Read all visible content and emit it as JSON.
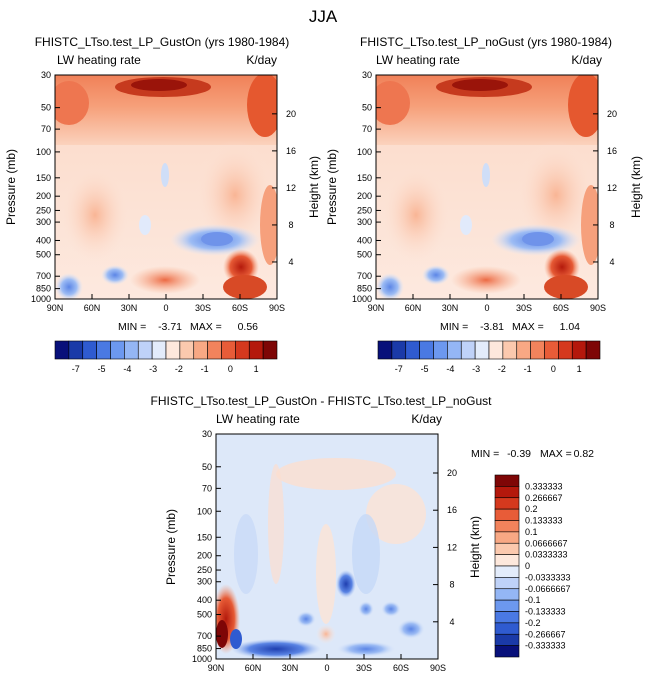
{
  "figure": {
    "title": "JJA"
  },
  "chart_data": [
    {
      "type": "heatmap",
      "id": "gust-on",
      "title": "FHISTC_LTso.test_LP_GustOn (yrs 1980-1984)",
      "variable": "LW heating rate",
      "units": "K/day",
      "ylabel": "Pressure (mb)",
      "ylabel_right": "Height (km)",
      "x_tick_labels": [
        "90N",
        "60N",
        "30N",
        "0",
        "30S",
        "60S",
        "90S"
      ],
      "x_range": [
        90,
        -90
      ],
      "y_tick_labels": [
        "30",
        "50",
        "70",
        "100",
        "150",
        "200",
        "250",
        "300",
        "400",
        "500",
        "700",
        "850",
        "1000"
      ],
      "y_range_mb": [
        30,
        1000
      ],
      "height_tick_labels": [
        "20",
        "16",
        "12",
        "8",
        "4"
      ],
      "stats": {
        "min_label": "MIN =",
        "min": "-3.71",
        "max_label": "MAX =",
        "max": "0.56"
      }
    },
    {
      "type": "heatmap",
      "id": "no-gust",
      "title": "FHISTC_LTso.test_LP_noGust (yrs 1980-1984)",
      "variable": "LW heating rate",
      "units": "K/day",
      "ylabel": "Pressure (mb)",
      "ylabel_right": "Height (km)",
      "x_tick_labels": [
        "90N",
        "60N",
        "30N",
        "0",
        "30S",
        "60S",
        "90S"
      ],
      "x_range": [
        90,
        -90
      ],
      "y_tick_labels": [
        "30",
        "50",
        "70",
        "100",
        "150",
        "200",
        "250",
        "300",
        "400",
        "500",
        "700",
        "850",
        "1000"
      ],
      "y_range_mb": [
        30,
        1000
      ],
      "height_tick_labels": [
        "20",
        "16",
        "12",
        "8",
        "4"
      ],
      "stats": {
        "min_label": "MIN =",
        "min": "-3.81",
        "max_label": "MAX =",
        "max": "1.04"
      }
    },
    {
      "type": "heatmap",
      "id": "difference",
      "title": "FHISTC_LTso.test_LP_GustOn - FHISTC_LTso.test_LP_noGust",
      "variable": "LW heating rate",
      "units": "K/day",
      "ylabel": "Pressure (mb)",
      "ylabel_right": "Height (km)",
      "x_tick_labels": [
        "90N",
        "60N",
        "30N",
        "0",
        "30S",
        "60S",
        "90S"
      ],
      "x_range": [
        90,
        -90
      ],
      "y_tick_labels": [
        "30",
        "50",
        "70",
        "100",
        "150",
        "200",
        "250",
        "300",
        "400",
        "500",
        "700",
        "850",
        "1000"
      ],
      "y_range_mb": [
        30,
        1000
      ],
      "height_tick_labels": [
        "20",
        "16",
        "12",
        "8",
        "4"
      ],
      "stats": {
        "min_label": "MIN =",
        "min": "-0.39",
        "max_label": "MAX =",
        "max": "0.82"
      }
    }
  ],
  "colorbar_main": {
    "labels": [
      "-7",
      "-5",
      "-4",
      "-3",
      "-2",
      "-1",
      "0",
      "1"
    ],
    "colors": [
      "#08107a",
      "#1a3aa8",
      "#2f5bd0",
      "#4a79e3",
      "#6c98ef",
      "#94b6f5",
      "#bfd2f8",
      "#e3ecfb",
      "#fde8dc",
      "#fbc9ae",
      "#f8a884",
      "#f2835c",
      "#e85c38",
      "#d5391e",
      "#b4180c",
      "#7e0606"
    ]
  },
  "colorbar_diff": {
    "labels": [
      "0.333333",
      "0.266667",
      "0.2",
      "0.133333",
      "0.1",
      "0.0666667",
      "0.0333333",
      "0",
      "-0.0333333",
      "-0.0666667",
      "-0.1",
      "-0.133333",
      "-0.2",
      "-0.266667",
      "-0.333333"
    ],
    "colors": [
      "#7e0606",
      "#b4180c",
      "#d5391e",
      "#e85c38",
      "#f2835c",
      "#f8a884",
      "#fbc9ae",
      "#fde8dc",
      "#e3ecfb",
      "#bfd2f8",
      "#94b6f5",
      "#6c98ef",
      "#4a79e3",
      "#2f5bd0",
      "#1a3aa8",
      "#08107a"
    ]
  }
}
